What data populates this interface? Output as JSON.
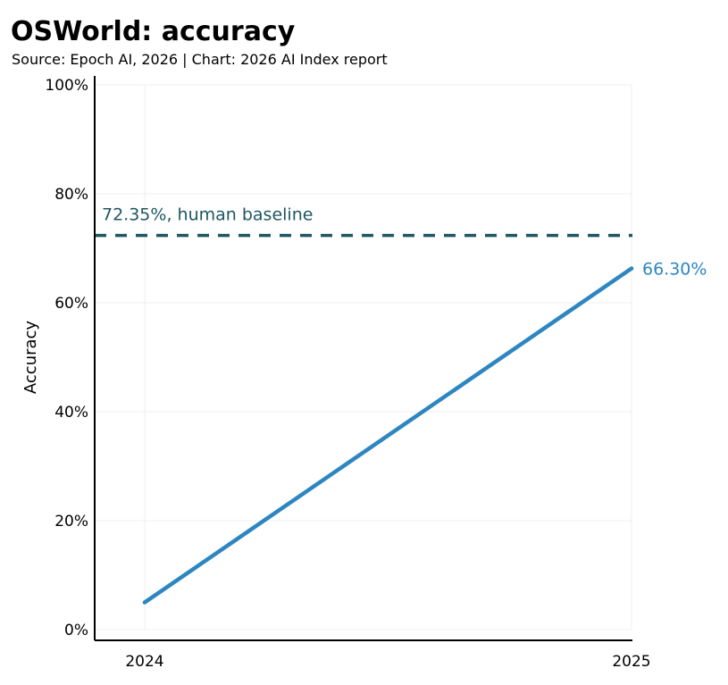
{
  "chart_data": {
    "type": "line",
    "title": "OSWorld: accuracy",
    "subtitle": "Source: Epoch AI, 2026 | Chart: 2026 AI Index report",
    "xlabel": "",
    "ylabel": "Accuracy",
    "x_categories": [
      "2024",
      "2025"
    ],
    "ylim": [
      0,
      100
    ],
    "y_ticks": [
      0,
      20,
      40,
      60,
      80,
      100
    ],
    "y_tick_labels": [
      "0%",
      "20%",
      "40%",
      "60%",
      "80%",
      "100%"
    ],
    "grid": true,
    "series": [
      {
        "x": [
          "2024",
          "2025"
        ],
        "values": [
          5,
          66.3
        ],
        "color": "#2e86c1",
        "end_label": "66.30%"
      }
    ],
    "reference_lines": [
      {
        "value": 72.35,
        "label": "72.35%, human baseline",
        "color": "#1f5662",
        "style": "dashed"
      }
    ]
  }
}
